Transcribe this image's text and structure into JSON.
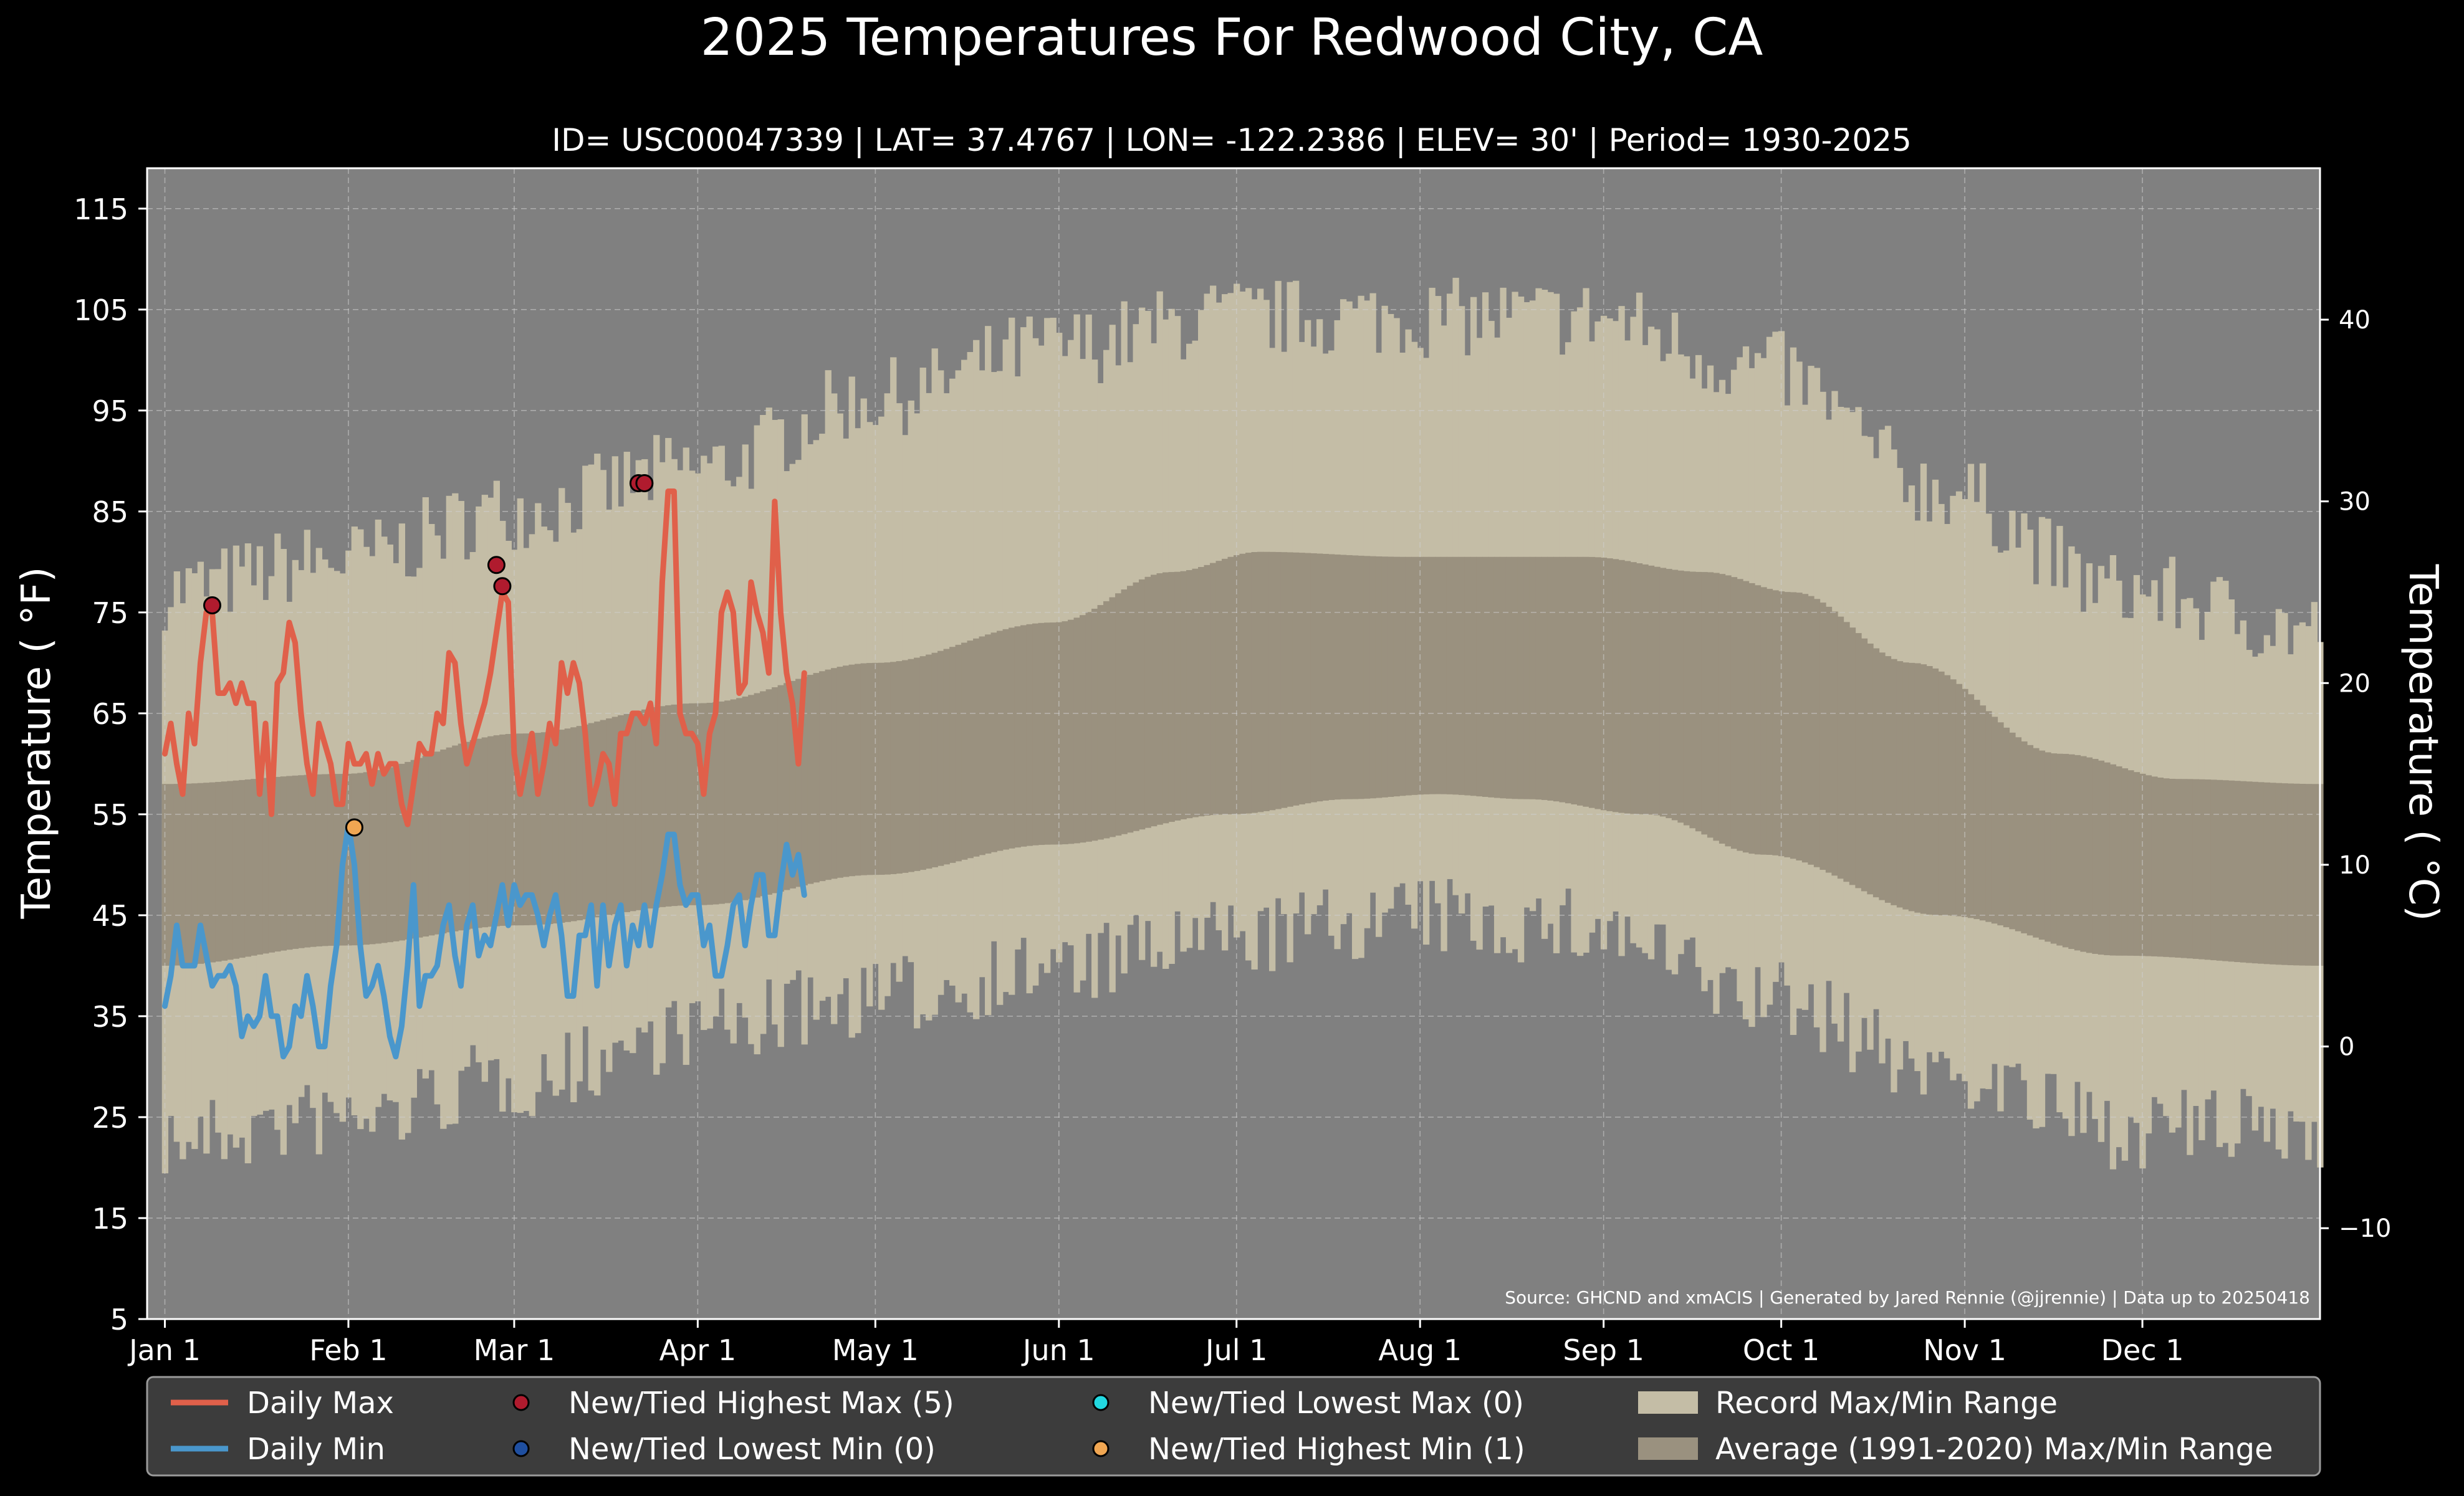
{
  "chart_data": {
    "type": "line",
    "title": "2025 Temperatures For Redwood City, CA",
    "subtitle": "ID= USC00047339 | LAT= 37.4767 | LON= -122.2386 | ELEV= 30' | Period= 1930-2025",
    "ylabel": "Temperature ( $^\\circ$F)",
    "ylabel_display": "Temperature ( °F)",
    "y2label": "Temperature ( °C)",
    "ylim": [
      5,
      119
    ],
    "yticks": [
      "5",
      "15",
      "25",
      "35",
      "45",
      "55",
      "65",
      "75",
      "85",
      "95",
      "105",
      "115"
    ],
    "y2ticks": [
      "−10",
      "0",
      "10",
      "20",
      "30",
      "40"
    ],
    "y2tick_values": [
      -10,
      0,
      10,
      20,
      30,
      40
    ],
    "xlim": [
      -3,
      364
    ],
    "x_ticks": [
      {
        "label": "Jan 1",
        "day": 0
      },
      {
        "label": "Feb 1",
        "day": 31
      },
      {
        "label": "Mar 1",
        "day": 59
      },
      {
        "label": "Apr 1",
        "day": 90
      },
      {
        "label": "May 1",
        "day": 120
      },
      {
        "label": "Jun 1",
        "day": 151
      },
      {
        "label": "Jul 1",
        "day": 181
      },
      {
        "label": "Aug 1",
        "day": 212
      },
      {
        "label": "Sep 1",
        "day": 243
      },
      {
        "label": "Oct 1",
        "day": 273
      },
      {
        "label": "Nov 1",
        "day": 304
      },
      {
        "label": "Dec 1",
        "day": 334
      }
    ],
    "grid": true,
    "source": "Source: GHCND and xmACIS | Generated by Jared Rennie (@jjrennie) | Data up to 20250418",
    "colors": {
      "background": "#000000",
      "plot_bg": "#808080",
      "record_range": "#c4bda6",
      "average_range": "#9a917f",
      "daily_max": "#e0604a",
      "daily_min": "#4a97cc",
      "highest_max": "#b01b2e",
      "lowest_min": "#1f4fa0",
      "lowest_max": "#22d8e0",
      "highest_min": "#f0a652",
      "legend_bg": "#3c3c3c"
    },
    "record_max_knots": [
      [
        0,
        76
      ],
      [
        30,
        79
      ],
      [
        60,
        84
      ],
      [
        90,
        88
      ],
      [
        120,
        95
      ],
      [
        150,
        100
      ],
      [
        180,
        103
      ],
      [
        210,
        103
      ],
      [
        240,
        103
      ],
      [
        270,
        98
      ],
      [
        300,
        86
      ],
      [
        330,
        76
      ],
      [
        364,
        72
      ]
    ],
    "record_min_knots": [
      [
        0,
        24
      ],
      [
        30,
        26
      ],
      [
        60,
        30
      ],
      [
        90,
        35
      ],
      [
        120,
        38
      ],
      [
        150,
        41
      ],
      [
        180,
        44
      ],
      [
        210,
        46
      ],
      [
        240,
        45
      ],
      [
        270,
        38
      ],
      [
        300,
        31
      ],
      [
        330,
        25
      ],
      [
        364,
        25
      ]
    ],
    "average_max_knots": [
      [
        0,
        58
      ],
      [
        30,
        59
      ],
      [
        60,
        63
      ],
      [
        90,
        66
      ],
      [
        120,
        70
      ],
      [
        150,
        74
      ],
      [
        170,
        79
      ],
      [
        185,
        81
      ],
      [
        210,
        80.5
      ],
      [
        240,
        80.5
      ],
      [
        260,
        79
      ],
      [
        275,
        77
      ],
      [
        295,
        70
      ],
      [
        320,
        61
      ],
      [
        340,
        58.5
      ],
      [
        364,
        58
      ]
    ],
    "average_min_knots": [
      [
        0,
        40
      ],
      [
        30,
        42
      ],
      [
        60,
        44
      ],
      [
        90,
        46
      ],
      [
        120,
        49
      ],
      [
        150,
        52
      ],
      [
        180,
        55
      ],
      [
        200,
        56.5
      ],
      [
        215,
        57
      ],
      [
        230,
        56.5
      ],
      [
        250,
        55
      ],
      [
        270,
        51
      ],
      [
        300,
        45
      ],
      [
        330,
        41
      ],
      [
        364,
        40
      ]
    ],
    "series": [
      {
        "name": "Daily Max",
        "x_start_day": 0,
        "values": [
          61,
          64,
          60,
          57,
          65,
          62,
          70,
          75,
          75,
          67,
          67,
          68,
          66,
          68,
          66,
          66,
          57,
          64,
          55,
          68,
          69,
          74,
          72,
          65,
          60,
          57,
          64,
          62,
          60,
          56,
          56,
          62,
          60,
          60,
          61,
          58,
          61,
          59,
          60,
          60,
          56,
          54,
          58,
          62,
          61,
          61,
          65,
          64,
          71,
          70,
          64,
          60,
          62,
          64,
          66,
          69,
          73,
          77,
          76,
          61,
          57,
          60,
          63,
          57,
          60,
          64,
          62,
          70,
          67,
          70,
          68,
          63,
          56,
          58,
          61,
          60,
          56,
          63,
          63,
          65,
          65,
          64,
          66,
          62,
          78,
          87,
          87,
          65,
          63,
          63,
          62,
          57,
          63,
          65,
          75,
          77,
          75,
          67,
          68,
          78,
          75,
          73,
          69,
          86,
          75,
          69,
          66,
          60,
          69
        ],
        "width": 9
      },
      {
        "name": "Daily Min",
        "x_start_day": 0,
        "values": [
          36,
          39,
          44,
          40,
          40,
          40,
          44,
          41,
          38,
          39,
          39,
          40,
          38,
          33,
          35,
          34,
          35,
          39,
          35,
          35,
          31,
          32,
          36,
          35,
          39,
          36,
          32,
          32,
          38,
          42,
          50,
          54,
          50,
          42,
          37,
          38,
          40,
          37,
          33,
          31,
          34,
          40,
          48,
          36,
          39,
          39,
          40,
          44,
          46,
          41,
          38,
          44,
          46,
          41,
          43,
          42,
          45,
          48,
          44,
          48,
          46,
          47,
          47,
          45,
          42,
          45,
          47,
          43,
          37,
          37,
          43,
          43,
          46,
          38,
          46,
          40,
          44,
          46,
          40,
          44,
          42,
          46,
          42,
          46,
          49,
          53,
          53,
          48,
          46,
          47,
          47,
          42,
          44,
          39,
          39,
          42,
          46,
          47,
          42,
          46,
          49,
          49,
          43,
          43,
          48,
          52,
          49,
          51,
          47
        ],
        "width": 9
      }
    ],
    "markers": [
      {
        "type": "highest_max",
        "x": 8,
        "y": 75.7
      },
      {
        "type": "highest_max",
        "x": 56,
        "y": 79.7
      },
      {
        "type": "highest_max",
        "x": 57,
        "y": 77.6
      },
      {
        "type": "highest_max",
        "x": 80,
        "y": 87.8
      },
      {
        "type": "highest_max",
        "x": 81,
        "y": 87.8
      },
      {
        "type": "highest_min",
        "x": 32,
        "y": 53.7
      }
    ],
    "legend": {
      "placement": "bottom",
      "entries": [
        {
          "label": "Daily Max",
          "kind": "line",
          "color": "#e0604a"
        },
        {
          "label": "Daily Min",
          "kind": "line",
          "color": "#4a97cc"
        },
        {
          "label": "New/Tied Highest Max (5)",
          "kind": "dot",
          "color": "#b01b2e"
        },
        {
          "label": "New/Tied Lowest Min (0)",
          "kind": "dot",
          "color": "#1f4fa0"
        },
        {
          "label": "New/Tied Lowest Max (0)",
          "kind": "dot",
          "color": "#22d8e0"
        },
        {
          "label": "New/Tied Highest Min (1)",
          "kind": "dot",
          "color": "#f0a652"
        },
        {
          "label": "Record Max/Min Range",
          "kind": "patch",
          "color": "#c4bda6"
        },
        {
          "label": "Average (1991-2020) Max/Min Range",
          "kind": "patch",
          "color": "#9a917f"
        }
      ]
    }
  }
}
